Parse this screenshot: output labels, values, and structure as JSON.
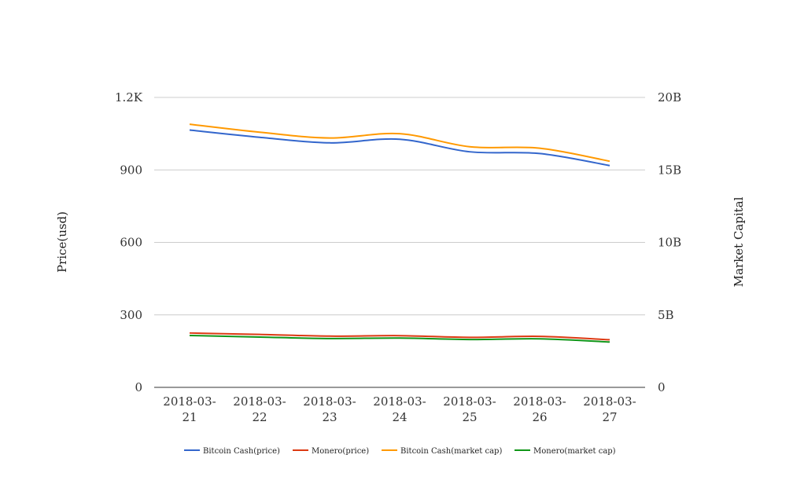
{
  "chart_data": {
    "type": "line",
    "categories": [
      "2018-03-21",
      "2018-03-22",
      "2018-03-23",
      "2018-03-24",
      "2018-03-25",
      "2018-03-26",
      "2018-03-27"
    ],
    "category_lines": [
      [
        "2018-03-",
        "21"
      ],
      [
        "2018-03-",
        "22"
      ],
      [
        "2018-03-",
        "23"
      ],
      [
        "2018-03-",
        "24"
      ],
      [
        "2018-03-",
        "25"
      ],
      [
        "2018-03-",
        "26"
      ],
      [
        "2018-03-",
        "27"
      ]
    ],
    "y_left": {
      "label": "Price(usd)",
      "lim": [
        0,
        1200
      ],
      "ticks": [
        0,
        300,
        600,
        900,
        1200
      ],
      "tick_labels": [
        "0",
        "300",
        "600",
        "900",
        "1.2K"
      ]
    },
    "y_right": {
      "label": "Market Capital",
      "lim": [
        0,
        20000000000
      ],
      "ticks": [
        0,
        5000000000,
        10000000000,
        15000000000,
        20000000000
      ],
      "tick_labels": [
        "0",
        "5B",
        "10B",
        "15B",
        "20B"
      ]
    },
    "grid": true,
    "legend_position": "bottom",
    "series": [
      {
        "name": "Bitcoin Cash(price)",
        "axis": "left",
        "color": "#3366cc",
        "values": [
          1065,
          1035,
          1012,
          1027,
          975,
          968,
          918
        ]
      },
      {
        "name": "Monero(price)",
        "axis": "left",
        "color": "#dc3912",
        "values": [
          225,
          219,
          212,
          214,
          207,
          211,
          197
        ]
      },
      {
        "name": "Bitcoin Cash(market cap)",
        "axis": "right",
        "color": "#ff9900",
        "values": [
          18150000000,
          17600000000,
          17200000000,
          17500000000,
          16600000000,
          16500000000,
          15600000000
        ]
      },
      {
        "name": "Monero(market cap)",
        "axis": "right",
        "color": "#109618",
        "values": [
          3580000000,
          3470000000,
          3370000000,
          3400000000,
          3300000000,
          3350000000,
          3130000000
        ]
      }
    ]
  }
}
